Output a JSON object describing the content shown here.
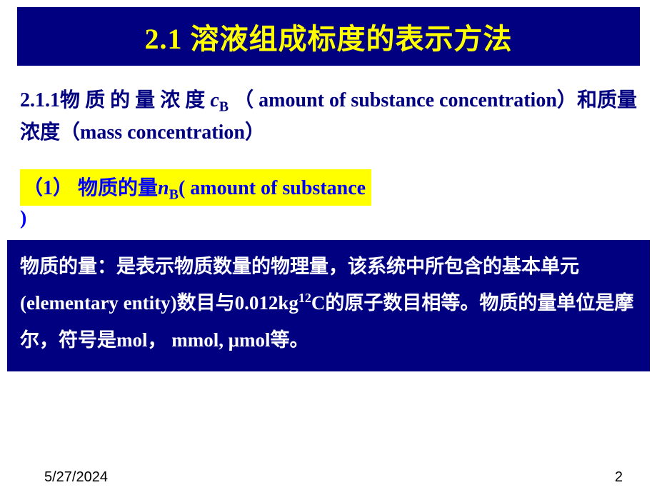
{
  "colors": {
    "title_bg": "#000080",
    "title_fg": "#ffff00",
    "subheading_fg": "#000080",
    "highlight_bg": "#ffff00",
    "highlight_fg": "#0000ff",
    "defbox_bg": "#000080",
    "defbox_fg": "#ffffff",
    "page_bg": "#ffffff",
    "footer_fg": "#000000"
  },
  "title": "2.1 溶液组成标度的表示方法",
  "subheading": {
    "prefix": "2.1.1物 质 的 量 浓 度 ",
    "symbol_c": "c",
    "symbol_sub": "B",
    "rest": "  （ amount  of  substance concentration）和质量浓度（mass  concentration）"
  },
  "highlight": {
    "prefix": "（1）  物质的量",
    "symbol_n": "n",
    "symbol_sub": "B",
    "rest": "( amount  of  substance",
    "close": ")"
  },
  "definition": {
    "p1a": "物质的量：是表示物质数量的物理量，该系统中所包含的基本单元(elementary entity)数目与0.012kg",
    "sup": "12",
    "p1b": "C的原子数目相等。物质的量单位是摩尔，符号是mol， mmol, μmol等。"
  },
  "footer": {
    "date": "5/27/2024",
    "page": "2"
  }
}
